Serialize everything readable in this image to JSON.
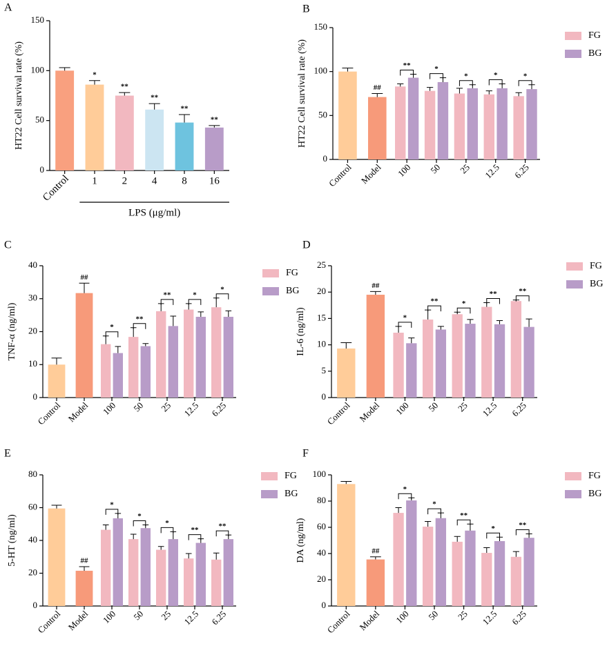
{
  "chart_data": [
    {
      "type": "bar",
      "label": "A",
      "ylabel": "HT22 Cell survival rate (%)",
      "categories": [
        "Control",
        "1",
        "2",
        "4",
        "8",
        "16"
      ],
      "values": [
        100,
        86,
        75,
        61,
        48,
        43
      ],
      "errors": [
        3,
        4,
        3,
        6,
        8,
        2
      ],
      "colors": [
        "#F9A07F",
        "#FFCC99",
        "#F2B8C0",
        "#CCE5F2",
        "#6EC3DF",
        "#B89CC8"
      ],
      "significance": [
        null,
        "*",
        "**",
        "**",
        "**",
        "**"
      ],
      "group_label": "LPS (μg/ml)",
      "ylim": [
        0,
        150
      ],
      "yticks": [
        0,
        50,
        100,
        150
      ]
    },
    {
      "type": "grouped_bar",
      "label": "B",
      "ylabel": "HT22 Cell survival rate (%)",
      "categories": [
        "Control",
        "Model",
        "100",
        "50",
        "25",
        "12.5",
        "6.25"
      ],
      "values": [
        100,
        71,
        null,
        null,
        null,
        null,
        null
      ],
      "errors": [
        4,
        4,
        null,
        null,
        null,
        null,
        null
      ],
      "colors": [
        "#FFCC99",
        "#F79A7A",
        null,
        null,
        null,
        null,
        null
      ],
      "significance": [
        null,
        "##",
        null,
        null,
        null,
        null,
        null
      ],
      "series": [
        {
          "name": "FG",
          "color": "#F2B8C0",
          "values": [
            null,
            null,
            83,
            78,
            75,
            74,
            72
          ],
          "errors": [
            null,
            null,
            3,
            4,
            6,
            4,
            4
          ]
        },
        {
          "name": "BG",
          "color": "#B89CC8",
          "values": [
            null,
            null,
            93,
            88,
            81,
            81,
            80
          ],
          "errors": [
            null,
            null,
            4,
            5,
            4,
            5,
            5
          ]
        }
      ],
      "brackets": [
        null,
        null,
        "**",
        "*",
        "*",
        "*",
        "*"
      ],
      "ylim": [
        0,
        150
      ],
      "yticks": [
        0,
        50,
        100,
        150
      ]
    },
    {
      "type": "grouped_bar",
      "label": "C",
      "ylabel": "TNF-α (ng/ml)",
      "categories": [
        "Control",
        "Model",
        "100",
        "50",
        "25",
        "12.5",
        "6.25"
      ],
      "values": [
        10,
        31.7,
        null,
        null,
        null,
        null,
        null
      ],
      "errors": [
        2,
        3,
        null,
        null,
        null,
        null,
        null
      ],
      "colors": [
        "#FFCC99",
        "#F79A7A",
        null,
        null,
        null,
        null,
        null
      ],
      "significance": [
        null,
        "##",
        null,
        null,
        null,
        null,
        null
      ],
      "series": [
        {
          "name": "FG",
          "color": "#F2B8C0",
          "values": [
            null,
            null,
            16.2,
            18.4,
            26.2,
            26.7,
            27.4
          ],
          "errors": [
            null,
            null,
            2.5,
            2.8,
            2.3,
            1.8,
            2.8
          ]
        },
        {
          "name": "BG",
          "color": "#B89CC8",
          "values": [
            null,
            null,
            13.5,
            15.6,
            21.7,
            24.5,
            24.5
          ],
          "errors": [
            null,
            null,
            2,
            0.8,
            3,
            1.5,
            1.8
          ]
        }
      ],
      "brackets": [
        null,
        null,
        "*",
        "**",
        "**",
        "*",
        "*"
      ],
      "ylim": [
        0,
        40
      ],
      "yticks": [
        0,
        10,
        20,
        30,
        40
      ]
    },
    {
      "type": "grouped_bar",
      "label": "D",
      "ylabel": "IL-6 (ng/ml)",
      "categories": [
        "Control",
        "Model",
        "100",
        "50",
        "25",
        "12.5",
        "6.25"
      ],
      "values": [
        9.3,
        19.5,
        null,
        null,
        null,
        null,
        null
      ],
      "errors": [
        1.1,
        0.6,
        null,
        null,
        null,
        null,
        null
      ],
      "colors": [
        "#FFCC99",
        "#F79A7A",
        null,
        null,
        null,
        null,
        null
      ],
      "significance": [
        null,
        "##",
        null,
        null,
        null,
        null,
        null
      ],
      "series": [
        {
          "name": "FG",
          "color": "#F2B8C0",
          "values": [
            null,
            null,
            12.3,
            14.8,
            15.8,
            17.2,
            18.3
          ],
          "errors": [
            null,
            null,
            1.2,
            1.8,
            0.4,
            0.8,
            0.2
          ]
        },
        {
          "name": "BG",
          "color": "#B89CC8",
          "values": [
            null,
            null,
            10.3,
            12.9,
            14,
            13.9,
            13.4
          ],
          "errors": [
            null,
            null,
            1,
            0.6,
            0.8,
            0.7,
            1.5
          ]
        }
      ],
      "brackets": [
        null,
        null,
        "*",
        "**",
        "*",
        "**",
        "**"
      ],
      "ylim": [
        0,
        25
      ],
      "yticks": [
        0,
        5,
        10,
        15,
        20,
        25
      ]
    },
    {
      "type": "grouped_bar",
      "label": "E",
      "ylabel": "5-HT (ng/ml)",
      "categories": [
        "Control",
        "Model",
        "100",
        "50",
        "25",
        "12.5",
        "6.25"
      ],
      "values": [
        59.5,
        21.5,
        null,
        null,
        null,
        null,
        null
      ],
      "errors": [
        2,
        2.5,
        null,
        null,
        null,
        null,
        null
      ],
      "colors": [
        "#FFCC99",
        "#F79A7A",
        null,
        null,
        null,
        null,
        null
      ],
      "significance": [
        null,
        "##",
        null,
        null,
        null,
        null,
        null
      ],
      "series": [
        {
          "name": "FG",
          "color": "#F2B8C0",
          "values": [
            null,
            null,
            46.5,
            40.8,
            34.3,
            29,
            28.3
          ],
          "errors": [
            null,
            null,
            3,
            3,
            2,
            3,
            4
          ]
        },
        {
          "name": "BG",
          "color": "#B89CC8",
          "values": [
            null,
            null,
            53.5,
            47.5,
            40.8,
            38.5,
            40.8
          ],
          "errors": [
            null,
            null,
            3,
            2,
            4.5,
            2.5,
            2.5
          ]
        }
      ],
      "brackets": [
        null,
        null,
        "*",
        "*",
        "*",
        "**",
        "**"
      ],
      "ylim": [
        0,
        80
      ],
      "yticks": [
        0,
        20,
        40,
        60,
        80
      ]
    },
    {
      "type": "grouped_bar",
      "label": "F",
      "ylabel": "DA (ng/ml)",
      "categories": [
        "Control",
        "Model",
        "100",
        "50",
        "25",
        "12.5",
        "6.25"
      ],
      "values": [
        93,
        35.5,
        null,
        null,
        null,
        null,
        null
      ],
      "errors": [
        2,
        2,
        null,
        null,
        null,
        null,
        null
      ],
      "colors": [
        "#FFCC99",
        "#F79A7A",
        null,
        null,
        null,
        null,
        null
      ],
      "significance": [
        null,
        "##",
        null,
        null,
        null,
        null,
        null
      ],
      "series": [
        {
          "name": "FG",
          "color": "#F2B8C0",
          "values": [
            null,
            null,
            71,
            60.5,
            49,
            40.5,
            37.5
          ],
          "errors": [
            null,
            null,
            4,
            4,
            4,
            4,
            4
          ]
        },
        {
          "name": "BG",
          "color": "#B89CC8",
          "values": [
            null,
            null,
            80.5,
            67,
            57.5,
            49.5,
            52
          ],
          "errors": [
            null,
            null,
            2,
            4,
            5,
            3,
            3
          ]
        }
      ],
      "brackets": [
        null,
        null,
        "*",
        "*",
        "**",
        "*",
        "**"
      ],
      "ylim": [
        0,
        100
      ],
      "yticks": [
        0,
        20,
        40,
        60,
        80,
        100
      ]
    }
  ]
}
